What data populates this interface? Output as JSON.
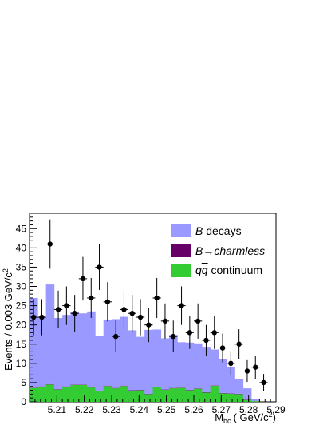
{
  "chart_data": {
    "type": "bar",
    "stacked": true,
    "xlabel_main": "M",
    "xlabel_sub": "bc",
    "xlabel_unit": "( GeV/c",
    "xlabel_unit_exp": "2",
    "xlabel_unit_close": ")",
    "ylabel_main": "Events / 0.003 GeV/c",
    "ylabel_exp": "2",
    "xlim": [
      5.2,
      5.29
    ],
    "ylim": [
      0,
      49
    ],
    "x_ticks": [
      "5.21",
      "5.22",
      "5.23",
      "5.24",
      "5.25",
      "5.26",
      "5.27",
      "5.28",
      "5.29"
    ],
    "x_tick_values": [
      5.21,
      5.22,
      5.23,
      5.24,
      5.25,
      5.26,
      5.27,
      5.28,
      5.29
    ],
    "y_ticks": [
      "0",
      "5",
      "10",
      "15",
      "20",
      "25",
      "30",
      "35",
      "40",
      "45"
    ],
    "y_tick_values": [
      0,
      5,
      10,
      15,
      20,
      25,
      30,
      35,
      40,
      45
    ],
    "bin_width": 0.003,
    "bin_edges_start": 5.2,
    "colors": {
      "b_decays": "#9999ff",
      "charmless": "#660066",
      "continuum": "#33cc33",
      "data": "#000000"
    },
    "legend_position": "top-right",
    "legend": [
      {
        "key": "b_decays",
        "label_italic": "B",
        "label_rest": " decays"
      },
      {
        "key": "charmless",
        "label_italic": "B",
        "label_arrow": "→",
        "label_rest_italic": "charmless"
      },
      {
        "key": "continuum",
        "label_italic": "q",
        "label_bar_italic": "q",
        "label_rest": " continuum"
      }
    ],
    "series": [
      {
        "key": "continuum",
        "values": [
          3.6,
          3.9,
          4.5,
          3.2,
          3.9,
          4.4,
          4.4,
          3.7,
          2.7,
          4.1,
          3.5,
          4.1,
          2.9,
          3.0,
          2.0,
          3.8,
          3.1,
          3.5,
          3.6,
          3.0,
          3.4,
          2.4,
          4.2,
          2.2,
          2.1,
          2.0,
          0.5,
          0.2,
          0.0,
          0.0
        ]
      },
      {
        "key": "charmless",
        "values": [
          0.1,
          0.1,
          0.1,
          0.1,
          0.1,
          0.1,
          0.1,
          0.1,
          0.1,
          0.1,
          0.1,
          0.1,
          0.1,
          0.1,
          0.1,
          0.1,
          0.1,
          0.1,
          0.1,
          0.1,
          0.1,
          0.1,
          0.1,
          0.1,
          0.1,
          0.1,
          0.1,
          0.0,
          0.0,
          0.0
        ]
      },
      {
        "key": "b_decays",
        "values": [
          23.3,
          18.0,
          25.9,
          18.5,
          18.6,
          18.8,
          18.5,
          19.7,
          14.4,
          17.2,
          17.9,
          17.9,
          15.6,
          13.8,
          16.6,
          14.9,
          13.3,
          13.8,
          11.8,
          12.3,
          11.7,
          11.8,
          9.3,
          8.9,
          6.9,
          3.8,
          2.9,
          0.6,
          0.0,
          0.0
        ]
      }
    ],
    "data_points": {
      "y": [
        22,
        22,
        41,
        24,
        25,
        23,
        32,
        27,
        35,
        26,
        17,
        24,
        23,
        22,
        20,
        27,
        21,
        17,
        25,
        18,
        21,
        16,
        18,
        14,
        10,
        15,
        8,
        9,
        5,
        null
      ]
    }
  }
}
